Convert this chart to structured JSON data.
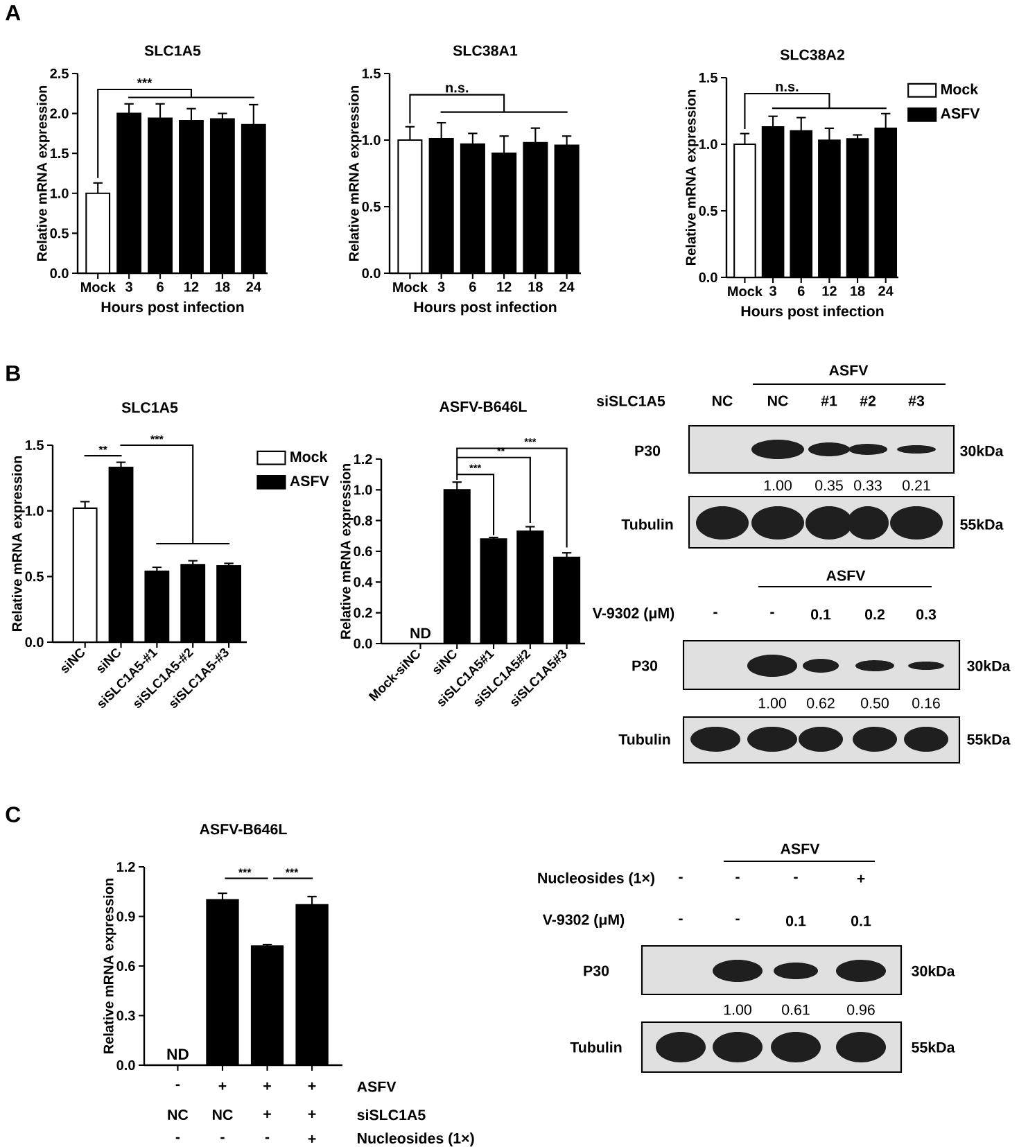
{
  "chart_data": [
    {
      "type": "bar",
      "title": "SLC1A5",
      "xlabel": "Hours post infection",
      "ylabel": "Relative mRNA expression",
      "categories": [
        "Mock",
        "3",
        "6",
        "12",
        "18",
        "24"
      ],
      "series": [
        {
          "color": "#ffffff",
          "values": [
            1.0,
            null,
            null,
            null,
            null,
            null
          ],
          "errors": [
            0.13,
            null,
            null,
            null,
            null,
            null
          ]
        },
        {
          "color": "#000000",
          "values": [
            null,
            2.0,
            1.94,
            1.91,
            1.93,
            1.86
          ],
          "errors": [
            null,
            0.12,
            0.18,
            0.15,
            0.07,
            0.25
          ]
        }
      ],
      "ylim": [
        0,
        2.5
      ],
      "yticks": [
        {
          "value": 0,
          "label": "0.0"
        },
        0.5,
        {
          "value": 1,
          "label": "1.0"
        },
        1.5,
        {
          "value": 2,
          "label": "2.0"
        },
        2.5
      ],
      "annotations": [
        "A",
        "***"
      ]
    },
    {
      "type": "bar",
      "title": "SLC38A1",
      "xlabel": "Hours post infection",
      "ylabel": "Relative mRNA expression",
      "categories": [
        "Mock",
        "3",
        "6",
        "12",
        "18",
        "24"
      ],
      "series": [
        {
          "color": "#ffffff",
          "values": [
            1.0,
            null,
            null,
            null,
            null,
            null
          ],
          "errors": [
            0.1,
            null,
            null,
            null,
            null,
            null
          ]
        },
        {
          "color": "#000000",
          "values": [
            null,
            1.01,
            0.97,
            0.9,
            0.98,
            0.96
          ],
          "errors": [
            null,
            0.12,
            0.08,
            0.13,
            0.11,
            0.07
          ]
        }
      ],
      "ylim": [
        0,
        1.5
      ],
      "yticks": [
        {
          "value": 0,
          "label": "0.0"
        },
        0.5,
        {
          "value": 1,
          "label": "1.0"
        },
        1.5
      ],
      "annotations": [
        "n.s."
      ]
    },
    {
      "type": "bar",
      "title": "SLC38A2",
      "xlabel": "Hours post infection",
      "ylabel": "Relative mRNA expression",
      "categories": [
        "Mock",
        "3",
        "6",
        "12",
        "18",
        "24"
      ],
      "series": [
        {
          "name": "Mock",
          "color": "#ffffff",
          "values": [
            1.0,
            null,
            null,
            null,
            null,
            null
          ],
          "errors": [
            0.08,
            null,
            null,
            null,
            null,
            null
          ]
        },
        {
          "name": "ASFV",
          "color": "#000000",
          "values": [
            null,
            1.13,
            1.1,
            1.03,
            1.04,
            1.12
          ],
          "errors": [
            null,
            0.08,
            0.1,
            0.09,
            0.03,
            0.11
          ]
        }
      ],
      "ylim": [
        0,
        1.5
      ],
      "yticks": [
        {
          "value": 0,
          "label": "0.0"
        },
        0.5,
        {
          "value": 1,
          "label": "1.0"
        },
        1.5
      ],
      "legend": "right",
      "annotations": [
        "n.s."
      ]
    },
    {
      "type": "bar",
      "title": "SLC1A5",
      "ylabel": "Relative mRNA expression",
      "categories": [
        "siNC",
        "siNC",
        "siSLC1A5-#1",
        "siSLC1A5-#2",
        "siSLC1A5-#3"
      ],
      "series": [
        {
          "name": "Mock",
          "color": "#ffffff",
          "values": [
            1.02,
            null,
            null,
            null,
            null
          ],
          "errors": [
            0.05,
            null,
            null,
            null,
            null
          ]
        },
        {
          "name": "ASFV",
          "color": "#000000",
          "values": [
            null,
            1.33,
            0.54,
            0.59,
            0.58
          ],
          "errors": [
            null,
            0.04,
            0.03,
            0.03,
            0.02
          ]
        }
      ],
      "ylim": [
        0,
        1.5
      ],
      "yticks": [
        {
          "value": 0,
          "label": "0.0"
        },
        0.5,
        {
          "value": 1,
          "label": "1.0"
        },
        1.5
      ],
      "legend": "right",
      "annotations": [
        "B",
        "**",
        "***"
      ]
    },
    {
      "type": "bar",
      "title": "ASFV-B646L",
      "ylabel": "Relative mRNA expression",
      "categories": [
        "Mock-siNC",
        "siNC",
        "siSLC1A5#1",
        "siSLC1A5#2",
        "siSLC1A5#3"
      ],
      "series": [
        {
          "color": "#000000",
          "values": [
            null,
            1.0,
            0.68,
            0.73,
            0.56
          ],
          "errors": [
            null,
            0.05,
            0.01,
            0.03,
            0.03
          ]
        }
      ],
      "ylim": [
        0,
        1.2
      ],
      "yticks": [
        {
          "value": 0,
          "label": "0.0"
        },
        0.2,
        0.4,
        0.6,
        0.8,
        {
          "value": 1,
          "label": "1.0"
        },
        1.2
      ],
      "annotations": [
        "***",
        "**",
        "***",
        "ND"
      ]
    },
    {
      "type": "other",
      "annotations": [
        "ASFV",
        "siSLC1A5",
        "NC",
        "NC",
        "#1",
        "#2",
        "#3",
        "P30",
        "30kDa",
        "1.00",
        "0.35",
        "0.33",
        "0.21",
        "Tubulin",
        "55kDa"
      ]
    },
    {
      "type": "other",
      "annotations": [
        "ASFV",
        "V-9302 (μM)",
        "-",
        "-",
        "0.1",
        "0.2",
        "0.3",
        "P30",
        "30kDa",
        "1.00",
        "0.62",
        "0.50",
        "0.16",
        "Tubulin",
        "55kDa"
      ]
    },
    {
      "type": "bar",
      "title": "ASFV-B646L",
      "ylabel": "Relative mRNA expression",
      "categories": [
        null,
        null,
        null,
        null
      ],
      "series": [
        {
          "color": "#000000",
          "values": [
            null,
            1.0,
            0.72,
            0.97
          ],
          "errors": [
            null,
            0.04,
            0.01,
            0.05
          ]
        }
      ],
      "ylim": [
        0,
        1.2
      ],
      "yticks": [
        {
          "value": 0,
          "label": "0.0"
        },
        0.3,
        0.6,
        0.9,
        1.2
      ],
      "annotations": [
        "C",
        "***",
        "***",
        "ND",
        "-",
        "+",
        "+",
        "+",
        "ASFV",
        "NC",
        "NC",
        "+",
        "+",
        "siSLC1A5",
        "-",
        "-",
        "-",
        "+",
        "Nucleosides (1×)"
      ]
    },
    {
      "type": "other",
      "annotations": [
        "ASFV",
        "Nucleosides (1×)",
        "-",
        "-",
        "-",
        "+",
        "V-9302 (μM)",
        "-",
        "-",
        "0.1",
        "0.1",
        "P30",
        "30kDa",
        "1.00",
        "0.61",
        "0.96",
        "Tubulin",
        "55kDa"
      ]
    }
  ]
}
